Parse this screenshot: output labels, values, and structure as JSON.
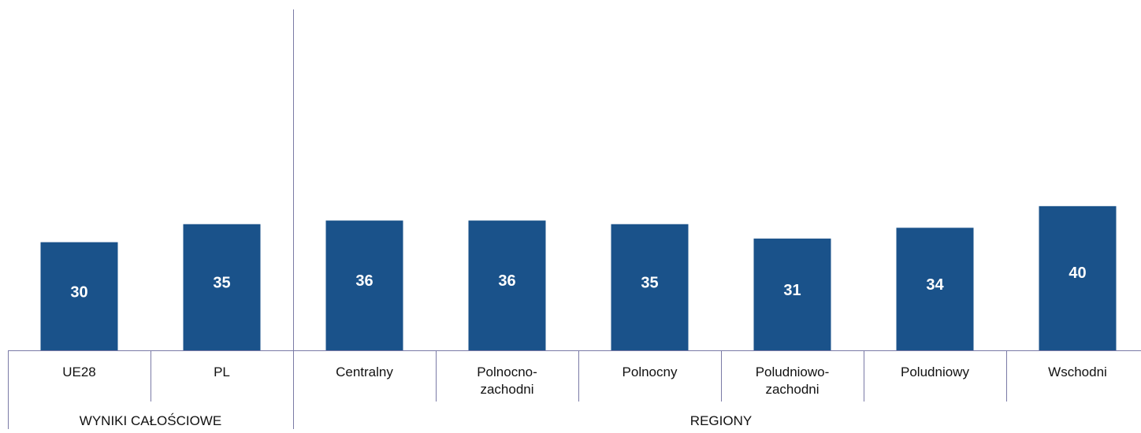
{
  "chart_data": {
    "type": "bar",
    "categories": [
      "UE28",
      "PL",
      "Centralny",
      "Polnocno-zachodni",
      "Polnocny",
      "Poludniowo-zachodni",
      "Poludniowy",
      "Wschodni"
    ],
    "category_lines": [
      [
        "UE28"
      ],
      [
        "PL"
      ],
      [
        "Centralny"
      ],
      [
        "Polnocno-",
        "zachodni"
      ],
      [
        "Polnocny"
      ],
      [
        "Poludniowo-",
        "zachodni"
      ],
      [
        "Poludniowy"
      ],
      [
        "Wschodni"
      ]
    ],
    "values": [
      30,
      35,
      36,
      36,
      35,
      31,
      34,
      40
    ],
    "groups": [
      {
        "label": "WYNIKI CAŁOŚCIOWE",
        "count": 2
      },
      {
        "label": "REGIONY",
        "count": 6
      }
    ],
    "title": "",
    "xlabel": "",
    "ylabel": "",
    "ylim": [
      0,
      95
    ],
    "bar_color": "#1a528a",
    "label_color": "#ffffff",
    "axis_color": "#7a7aa6",
    "grid": false,
    "legend": "none"
  }
}
